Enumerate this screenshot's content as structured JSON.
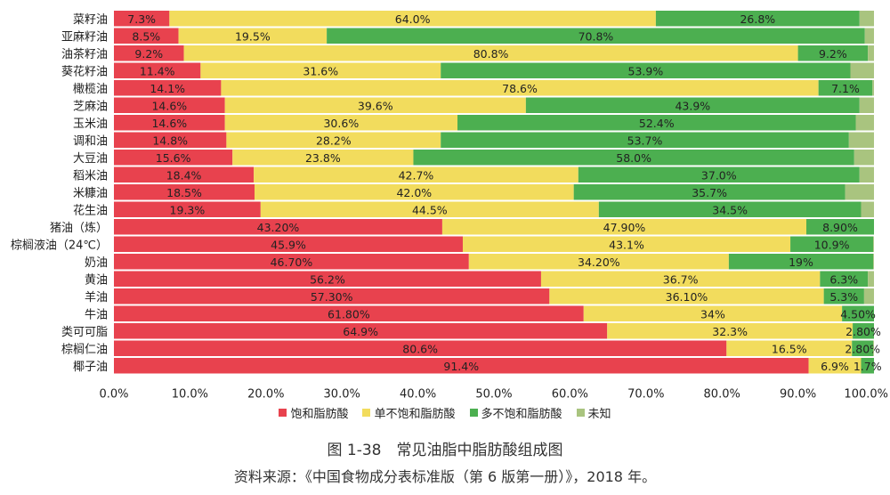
{
  "chart_data": {
    "type": "bar",
    "orientation": "horizontal",
    "stacked": true,
    "categories": [
      "菜籽油",
      "亚麻籽油",
      "油茶籽油",
      "葵花籽油",
      "橄榄油",
      "芝麻油",
      "玉米油",
      "调和油",
      "大豆油",
      "稻米油",
      "米糠油",
      "花生油",
      "猪油（炼）",
      "棕榈液油（24℃）",
      "奶油",
      "黄油",
      "羊油",
      "牛油",
      "类可可脂",
      "棕榈仁油",
      "椰子油"
    ],
    "series": [
      {
        "name": "饱和脂肪酸",
        "color": "#e8424e",
        "values": [
          7.3,
          8.5,
          9.2,
          11.4,
          14.1,
          14.6,
          14.6,
          14.8,
          15.6,
          18.4,
          18.5,
          19.3,
          43.2,
          45.9,
          46.7,
          56.2,
          57.3,
          61.8,
          64.9,
          80.6,
          91.4
        ],
        "labels": [
          "7.3%",
          "8.5%",
          "9.2%",
          "11.4%",
          "14.1%",
          "14.6%",
          "14.6%",
          "14.8%",
          "15.6%",
          "18.4%",
          "18.5%",
          "19.3%",
          "43.20%",
          "45.9%",
          "46.70%",
          "56.2%",
          "57.30%",
          "61.80%",
          "64.9%",
          "80.6%",
          "91.4%"
        ]
      },
      {
        "name": "单不饱和脂肪酸",
        "color": "#f2dc5d",
        "values": [
          64.0,
          19.5,
          80.8,
          31.6,
          78.6,
          39.6,
          30.6,
          28.2,
          23.8,
          42.7,
          42.0,
          44.5,
          47.9,
          43.1,
          34.2,
          36.7,
          36.1,
          34,
          32.3,
          16.5,
          6.9
        ],
        "labels": [
          "64.0%",
          "19.5%",
          "80.8%",
          "31.6%",
          "78.6%",
          "39.6%",
          "30.6%",
          "28.2%",
          "23.8%",
          "42.7%",
          "42.0%",
          "44.5%",
          "47.90%",
          "43.1%",
          "34.20%",
          "36.7%",
          "36.10%",
          "34%",
          "32.3%",
          "16.5%",
          "6.9%"
        ]
      },
      {
        "name": "多不饱和脂肪酸",
        "color": "#4caf50",
        "values": [
          26.8,
          70.8,
          9.2,
          53.9,
          7.1,
          43.9,
          52.4,
          53.7,
          58.0,
          37.0,
          35.7,
          34.5,
          8.9,
          10.9,
          19,
          6.3,
          5.3,
          4.5,
          2.8,
          2.8,
          1.7
        ],
        "labels": [
          "26.8%",
          "70.8%",
          "9.2%",
          "53.9%",
          "7.1%",
          "43.9%",
          "52.4%",
          "53.7%",
          "58.0%",
          "37.0%",
          "35.7%",
          "34.5%",
          "8.90%",
          "10.9%",
          "19%",
          "6.3%",
          "5.3%",
          "4.50%",
          "2.80%",
          "2.80%",
          "1.7%"
        ]
      },
      {
        "name": "未知",
        "color": "#a9c47f",
        "values": [
          1.9,
          1.2,
          0.8,
          3.1,
          0.2,
          1.9,
          2.4,
          3.3,
          2.6,
          1.9,
          3.8,
          1.7,
          0,
          0.1,
          0.1,
          0.8,
          1.3,
          0,
          0,
          0.1,
          0
        ],
        "labels": []
      }
    ],
    "xlim": [
      0,
      100
    ],
    "xticks": [
      "0.0%",
      "10.0%",
      "20.0%",
      "30.0%",
      "40.0%",
      "50.0%",
      "60.0%",
      "70.0%",
      "80.0%",
      "90.0%",
      "100.0%"
    ],
    "legend_position": "bottom-center",
    "grid": false
  },
  "caption": {
    "title": "图 1-38　常见油脂中脂肪酸组成图",
    "source": "资料来源：《中国食物成分表标准版（第 6 版第一册）》，2018 年。"
  }
}
